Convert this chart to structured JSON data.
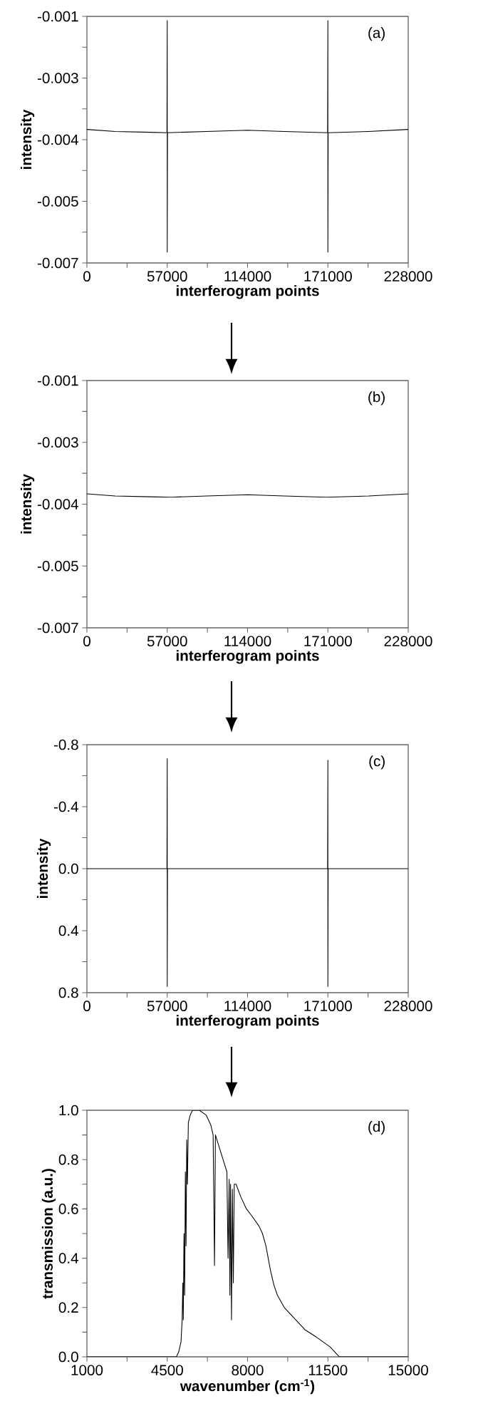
{
  "chart_data": [
    {
      "type": "line",
      "xlabel": "interferogram points",
      "ylabel": "intensity",
      "annotations": [
        "(a)"
      ],
      "color": "#000000",
      "x": [
        0,
        20000,
        45000,
        56800,
        57000,
        57000,
        57200,
        85000,
        114000,
        140000,
        170800,
        171000,
        171000,
        171200,
        200000,
        228000
      ],
      "values": [
        -0.00375,
        -0.0038,
        -0.00382,
        -0.00383,
        -0.0011,
        -0.00674,
        -0.00383,
        -0.0038,
        -0.00377,
        -0.0038,
        -0.00383,
        -0.0011,
        -0.00674,
        -0.00383,
        -0.0038,
        -0.00375
      ],
      "xlim": [
        0,
        228000
      ],
      "xticks": [
        0,
        {
          "value": 28500,
          "label": null
        },
        57000,
        {
          "value": 85500,
          "label": null
        },
        114000,
        {
          "value": 142500,
          "label": null
        },
        171000,
        {
          "value": 199500,
          "label": null
        },
        228000
      ],
      "ylim": [
        -0.007,
        -0.001
      ],
      "yticks": [
        {
          "value": -0.001,
          "label": "-0.001"
        },
        {
          "value": -0.00175,
          "label": null
        },
        {
          "value": -0.0025,
          "label": "-0.003"
        },
        {
          "value": -0.00325,
          "label": null
        },
        {
          "value": -0.004,
          "label": "-0.004"
        },
        {
          "value": -0.00475,
          "label": null
        },
        {
          "value": -0.0055,
          "label": "-0.005"
        },
        {
          "value": -0.00625,
          "label": null
        },
        {
          "value": -0.007,
          "label": "-0.007"
        }
      ]
    },
    {
      "type": "line",
      "xlabel": "interferogram points",
      "ylabel": "intensity",
      "annotations": [
        "(b)"
      ],
      "color": "#000000",
      "x": [
        0,
        20000,
        45000,
        60000,
        85000,
        114000,
        140000,
        170000,
        200000,
        228000
      ],
      "values": [
        -0.00375,
        -0.0038,
        -0.00382,
        -0.00383,
        -0.0038,
        -0.00377,
        -0.0038,
        -0.00383,
        -0.0038,
        -0.00375
      ],
      "xlim": [
        0,
        228000
      ],
      "xticks": [
        0,
        {
          "value": 28500,
          "label": null
        },
        57000,
        {
          "value": 85500,
          "label": null
        },
        114000,
        {
          "value": 142500,
          "label": null
        },
        171000,
        {
          "value": 199500,
          "label": null
        },
        228000
      ],
      "ylim": [
        -0.007,
        -0.001
      ],
      "yticks": [
        {
          "value": -0.001,
          "label": "-0.001"
        },
        {
          "value": -0.00175,
          "label": null
        },
        {
          "value": -0.0025,
          "label": "-0.003"
        },
        {
          "value": -0.00325,
          "label": null
        },
        {
          "value": -0.004,
          "label": "-0.004"
        },
        {
          "value": -0.00475,
          "label": null
        },
        {
          "value": -0.0055,
          "label": "-0.005"
        },
        {
          "value": -0.00625,
          "label": null
        },
        {
          "value": -0.007,
          "label": "-0.007"
        }
      ]
    },
    {
      "type": "line",
      "xlabel": "interferogram points",
      "ylabel": "intensity",
      "annotations": [
        "(c)"
      ],
      "color": "#000000",
      "x": [
        0,
        56800,
        57000,
        57000,
        57200,
        170800,
        171000,
        171000,
        171200,
        228000
      ],
      "values": [
        0,
        0,
        -0.71,
        0.76,
        0,
        0,
        -0.7,
        0.76,
        0,
        0
      ],
      "xlim": [
        0,
        228000
      ],
      "xticks": [
        0,
        {
          "value": 28500,
          "label": null
        },
        57000,
        {
          "value": 85500,
          "label": null
        },
        114000,
        {
          "value": 142500,
          "label": null
        },
        171000,
        {
          "value": 199500,
          "label": null
        },
        228000
      ],
      "ylim": [
        0.8,
        -0.8
      ],
      "yticks": [
        -0.8,
        {
          "value": -0.6,
          "label": null
        },
        -0.4,
        {
          "value": -0.2,
          "label": null
        },
        {
          "value": 0,
          "label": "0.0"
        },
        {
          "value": 0.2,
          "label": null
        },
        0.4,
        {
          "value": 0.6,
          "label": null
        },
        0.8
      ]
    },
    {
      "type": "line",
      "xlabel": "wavenumber (cm$^{-1}$)",
      "ylabel": "transmission (a.u.)",
      "annotations": [
        "(d)"
      ],
      "color": "#000000",
      "x": [
        1000,
        4900,
        5000,
        5100,
        5150,
        5180,
        5200,
        5230,
        5260,
        5290,
        5320,
        5350,
        5380,
        5420,
        5500,
        5600,
        5900,
        6200,
        6400,
        6500,
        6560,
        6600,
        6800,
        7000,
        7100,
        7150,
        7200,
        7230,
        7260,
        7300,
        7340,
        7380,
        7420,
        7500,
        7700,
        7950,
        8200,
        8500,
        8650,
        8800,
        8900,
        9000,
        9150,
        9300,
        9600,
        10000,
        10500,
        11000,
        11300,
        11600,
        11800,
        12000,
        15000
      ],
      "values": [
        0,
        0,
        0.02,
        0.06,
        0.15,
        0.3,
        0.15,
        0.5,
        0.25,
        0.75,
        0.45,
        0.88,
        0.7,
        0.95,
        0.98,
        1.0,
        1.0,
        0.98,
        0.94,
        0.9,
        0.37,
        0.9,
        0.84,
        0.78,
        0.75,
        0.4,
        0.72,
        0.25,
        0.7,
        0.15,
        0.68,
        0.3,
        0.7,
        0.7,
        0.65,
        0.6,
        0.57,
        0.53,
        0.5,
        0.45,
        0.4,
        0.35,
        0.29,
        0.25,
        0.2,
        0.16,
        0.11,
        0.08,
        0.06,
        0.04,
        0.02,
        0,
        0
      ],
      "xlim": [
        1000,
        15000
      ],
      "xticks": [
        1000,
        {
          "value": 2750,
          "label": null
        },
        4500,
        {
          "value": 6250,
          "label": null
        },
        8000,
        {
          "value": 9750,
          "label": null
        },
        11500,
        {
          "value": 13250,
          "label": null
        },
        15000
      ],
      "ylim": [
        0,
        1
      ],
      "yticks": [
        {
          "value": 0,
          "label": "0.0"
        },
        {
          "value": 0.1,
          "label": null
        },
        0.2,
        {
          "value": 0.3,
          "label": null
        },
        0.4,
        {
          "value": 0.5,
          "label": null
        },
        0.6,
        {
          "value": 0.7,
          "label": null
        },
        0.8,
        {
          "value": 0.9,
          "label": null
        },
        {
          "value": 1,
          "label": "1.0"
        }
      ]
    }
  ]
}
